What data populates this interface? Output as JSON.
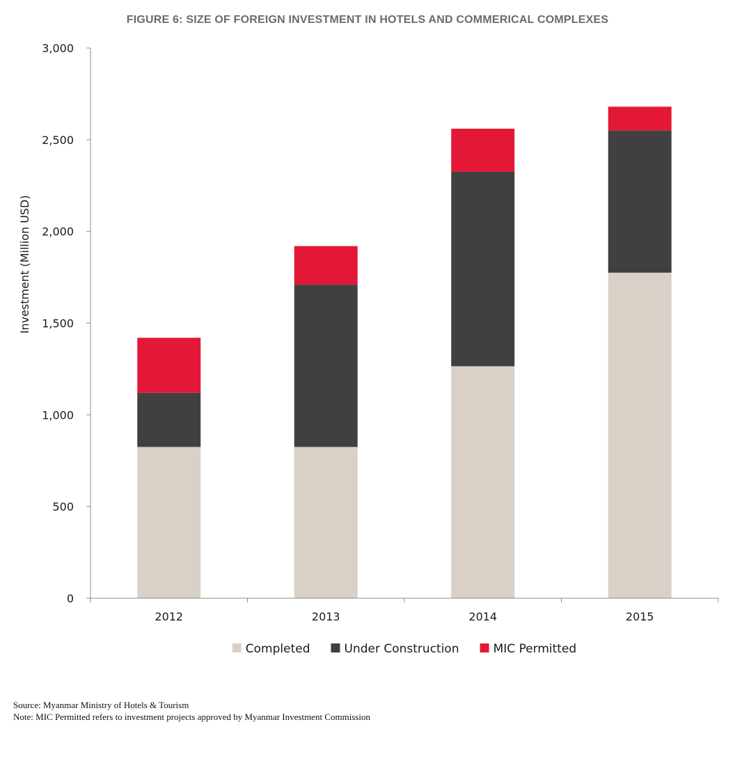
{
  "chart_data": {
    "type": "bar",
    "stacked": true,
    "title": "FIGURE 6:  SIZE OF FOREIGN INVESTMENT IN HOTELS AND COMMERICAL COMPLEXES",
    "xlabel": "",
    "ylabel": "Investment (Million USD)",
    "ylim": [
      0,
      3000
    ],
    "yticks": [
      0,
      500,
      1000,
      1500,
      2000,
      2500,
      3000
    ],
    "ytick_labels": [
      "0",
      "500",
      "1,000",
      "1,500",
      "2,000",
      "2,500",
      "3,000"
    ],
    "categories": [
      "2012",
      "2013",
      "2014",
      "2015"
    ],
    "series": [
      {
        "name": "Completed",
        "color": "#d9d0c7",
        "values": [
          825,
          825,
          1265,
          1775
        ]
      },
      {
        "name": "Under Construction",
        "color": "#404040",
        "values": [
          295,
          885,
          1060,
          775
        ]
      },
      {
        "name": "MIC Permitted",
        "color": "#e31837",
        "values": [
          300,
          210,
          235,
          130
        ]
      }
    ],
    "grid": false,
    "legend_position": "bottom"
  },
  "footnotes": {
    "source": "Source: Myanmar Ministry of Hotels & Tourism",
    "note": "Note: MIC Permitted refers to investment projects approved by Myanmar Investment Commission"
  }
}
